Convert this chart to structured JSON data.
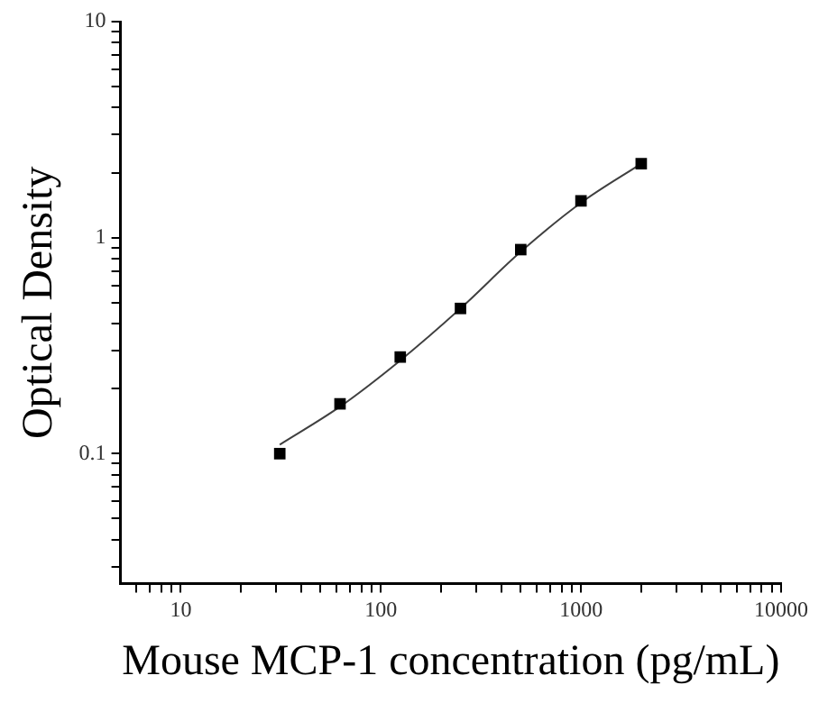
{
  "chart_data": {
    "type": "scatter",
    "xlabel": "Mouse MCP-1 concentration (pg/mL)",
    "ylabel": "Optical Density",
    "log": "xy",
    "grid": false,
    "legend": false,
    "xlim": [
      5,
      10000
    ],
    "ylim": [
      0.025,
      10
    ],
    "xticks": [
      {
        "value": 6,
        "label": null
      },
      {
        "value": 7,
        "label": null
      },
      {
        "value": 8,
        "label": null
      },
      {
        "value": 9,
        "label": null
      },
      10,
      {
        "value": 20,
        "label": null
      },
      {
        "value": 30,
        "label": null
      },
      {
        "value": 40,
        "label": null
      },
      {
        "value": 50,
        "label": null
      },
      {
        "value": 60,
        "label": null
      },
      {
        "value": 70,
        "label": null
      },
      {
        "value": 80,
        "label": null
      },
      {
        "value": 90,
        "label": null
      },
      100,
      {
        "value": 200,
        "label": null
      },
      {
        "value": 300,
        "label": null
      },
      {
        "value": 400,
        "label": null
      },
      {
        "value": 500,
        "label": null
      },
      {
        "value": 600,
        "label": null
      },
      {
        "value": 700,
        "label": null
      },
      {
        "value": 800,
        "label": null
      },
      {
        "value": 900,
        "label": null
      },
      1000,
      {
        "value": 2000,
        "label": null
      },
      {
        "value": 3000,
        "label": null
      },
      {
        "value": 4000,
        "label": null
      },
      {
        "value": 5000,
        "label": null
      },
      {
        "value": 6000,
        "label": null
      },
      {
        "value": 7000,
        "label": null
      },
      {
        "value": 8000,
        "label": null
      },
      {
        "value": 9000,
        "label": null
      },
      10000
    ],
    "yticks": [
      {
        "value": 0.03,
        "label": null
      },
      {
        "value": 0.04,
        "label": null
      },
      {
        "value": 0.05,
        "label": null
      },
      {
        "value": 0.06,
        "label": null
      },
      {
        "value": 0.07,
        "label": null
      },
      {
        "value": 0.08,
        "label": null
      },
      {
        "value": 0.09,
        "label": null
      },
      {
        "value": 0.1,
        "label": "0.1"
      },
      {
        "value": 0.2,
        "label": null
      },
      {
        "value": 0.3,
        "label": null
      },
      {
        "value": 0.4,
        "label": null
      },
      {
        "value": 0.5,
        "label": null
      },
      {
        "value": 0.6,
        "label": null
      },
      {
        "value": 0.7,
        "label": null
      },
      {
        "value": 0.8,
        "label": null
      },
      {
        "value": 0.9,
        "label": null
      },
      1,
      {
        "value": 2,
        "label": null
      },
      {
        "value": 3,
        "label": null
      },
      {
        "value": 4,
        "label": null
      },
      {
        "value": 5,
        "label": null
      },
      {
        "value": 6,
        "label": null
      },
      {
        "value": 7,
        "label": null
      },
      {
        "value": 8,
        "label": null
      },
      {
        "value": 9,
        "label": null
      },
      10
    ],
    "series": [
      {
        "type": "line",
        "color": "#404040",
        "marker": "none",
        "line_style": "solid",
        "x": [
          31.25,
          62.5,
          125,
          250,
          500,
          1000,
          2000
        ],
        "values": [
          0.11,
          0.165,
          0.27,
          0.47,
          0.86,
          1.45,
          2.2
        ]
      },
      {
        "type": "scatter",
        "color": "#000000",
        "marker": "square",
        "x": [
          31.25,
          62.5,
          125,
          250,
          500,
          1000,
          2000
        ],
        "values": [
          0.1,
          0.17,
          0.28,
          0.47,
          0.88,
          1.48,
          2.2
        ]
      }
    ]
  }
}
